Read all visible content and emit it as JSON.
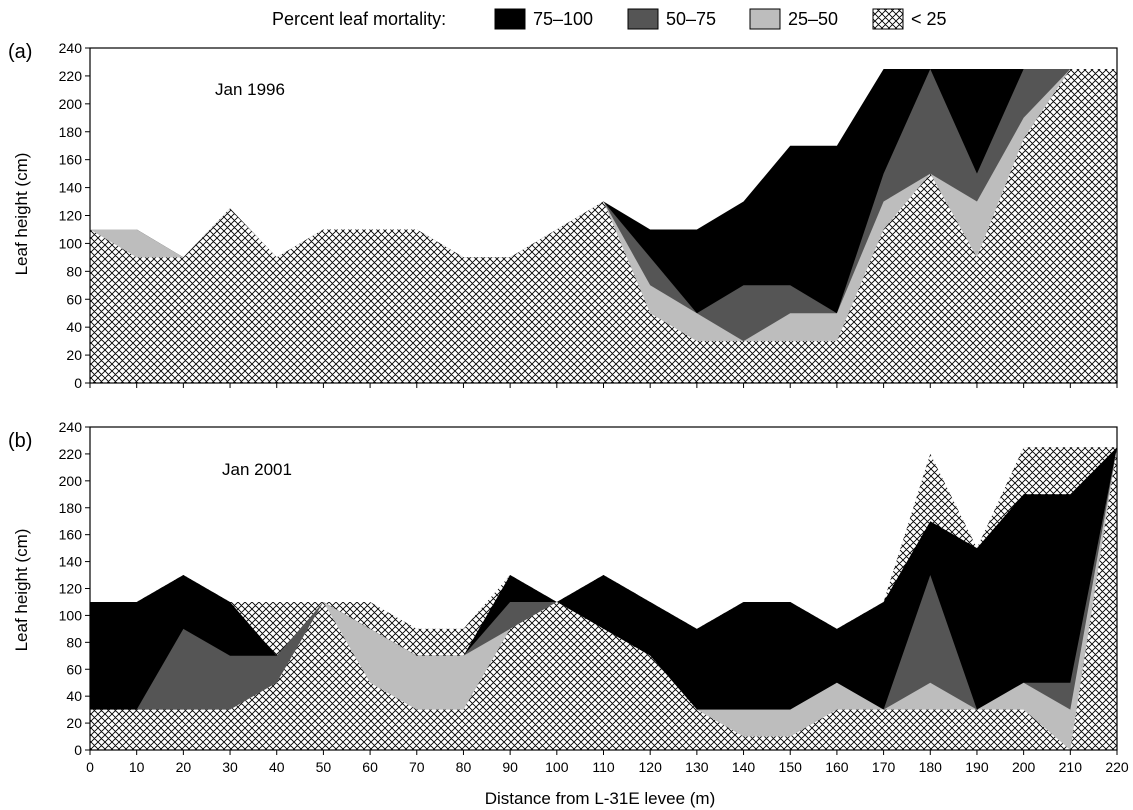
{
  "legend": {
    "title": "Percent leaf mortality:",
    "items": [
      {
        "label": "75–100",
        "fill": "#000000"
      },
      {
        "label": "50–75",
        "fill": "#555555"
      },
      {
        "label": "25–50",
        "fill": "#bdbdbd"
      },
      {
        "label": "< 25",
        "fill": "hatch"
      }
    ]
  },
  "chart_data": [
    {
      "type": "area",
      "panel": "(a)",
      "annotation": "Jan 1996",
      "xlabel": "",
      "ylabel": "Leaf height (cm)",
      "xlim": [
        0,
        220
      ],
      "ylim": [
        0,
        240
      ],
      "x_ticks": [
        "0",
        "10",
        "20",
        "30",
        "40",
        "50",
        "60",
        "70",
        "80",
        "90",
        "100",
        "110",
        "120",
        "130",
        "140",
        "150",
        "160",
        "170",
        "180",
        "190",
        "200",
        "210",
        "220"
      ],
      "y_ticks": [
        "0",
        "20",
        "40",
        "60",
        "80",
        "100",
        "120",
        "140",
        "160",
        "180",
        "200",
        "220",
        "240"
      ],
      "x": [
        0,
        10,
        20,
        30,
        40,
        50,
        60,
        70,
        80,
        90,
        100,
        110,
        120,
        130,
        140,
        150,
        160,
        170,
        180,
        190,
        200,
        210,
        220
      ],
      "series": [
        {
          "name": "< 25",
          "values": [
            110,
            90,
            90,
            125,
            90,
            110,
            110,
            110,
            90,
            90,
            110,
            130,
            50,
            30,
            30,
            30,
            30,
            110,
            150,
            90,
            175,
            225,
            225
          ]
        },
        {
          "name": "25–50",
          "values": [
            110,
            110,
            90,
            125,
            90,
            110,
            110,
            110,
            90,
            90,
            110,
            130,
            70,
            50,
            30,
            50,
            50,
            130,
            150,
            130,
            190,
            225,
            225
          ]
        },
        {
          "name": "50–75",
          "values": [
            110,
            110,
            90,
            125,
            90,
            110,
            110,
            110,
            90,
            90,
            110,
            130,
            90,
            50,
            70,
            70,
            50,
            150,
            225,
            150,
            225,
            225,
            225
          ]
        },
        {
          "name": "75–100",
          "values": [
            110,
            110,
            90,
            125,
            90,
            110,
            110,
            110,
            90,
            90,
            110,
            130,
            110,
            110,
            130,
            170,
            170,
            225,
            225,
            225,
            225,
            225,
            225
          ]
        }
      ]
    },
    {
      "type": "area",
      "panel": "(b)",
      "annotation": "Jan 2001",
      "xlabel": "Distance from L-31E levee (m)",
      "ylabel": "Leaf height (cm)",
      "xlim": [
        0,
        220
      ],
      "ylim": [
        0,
        240
      ],
      "x_ticks": [
        "0",
        "10",
        "20",
        "30",
        "40",
        "50",
        "60",
        "70",
        "80",
        "90",
        "100",
        "110",
        "120",
        "130",
        "140",
        "150",
        "160",
        "170",
        "180",
        "190",
        "200",
        "210",
        "220"
      ],
      "y_ticks": [
        "0",
        "20",
        "40",
        "60",
        "80",
        "100",
        "120",
        "140",
        "160",
        "180",
        "200",
        "220",
        "240"
      ],
      "x": [
        0,
        10,
        20,
        30,
        40,
        50,
        60,
        70,
        80,
        90,
        100,
        110,
        120,
        130,
        140,
        150,
        160,
        170,
        180,
        190,
        200,
        210,
        220
      ],
      "series": [
        {
          "name": "< 25",
          "values": [
            30,
            30,
            30,
            30,
            50,
            110,
            50,
            30,
            30,
            90,
            110,
            90,
            70,
            30,
            10,
            10,
            30,
            30,
            30,
            30,
            30,
            0,
            225
          ]
        },
        {
          "name": "25–50",
          "values": [
            30,
            10,
            30,
            30,
            50,
            110,
            90,
            70,
            70,
            90,
            110,
            90,
            70,
            30,
            30,
            30,
            50,
            30,
            50,
            30,
            50,
            30,
            225
          ]
        },
        {
          "name": "50–75",
          "values": [
            30,
            30,
            90,
            70,
            70,
            110,
            90,
            70,
            70,
            110,
            110,
            90,
            70,
            30,
            30,
            30,
            50,
            30,
            130,
            30,
            50,
            50,
            225
          ]
        },
        {
          "name": "75–100",
          "values": [
            110,
            110,
            130,
            110,
            70,
            110,
            90,
            70,
            70,
            130,
            110,
            130,
            110,
            90,
            110,
            110,
            90,
            110,
            170,
            150,
            190,
            190,
            225
          ]
        },
        {
          "name": "< 25",
          "values": [
            110,
            110,
            130,
            110,
            110,
            110,
            110,
            90,
            90,
            130,
            110,
            130,
            110,
            90,
            110,
            110,
            90,
            110,
            220,
            150,
            225,
            225,
            225
          ]
        },
        {
          "name": "25–50",
          "values": [
            110,
            110,
            130,
            110,
            110,
            110,
            110,
            90,
            90,
            130,
            110,
            130,
            110,
            90,
            110,
            110,
            90,
            110,
            220,
            150,
            225,
            225,
            225
          ]
        }
      ]
    }
  ]
}
